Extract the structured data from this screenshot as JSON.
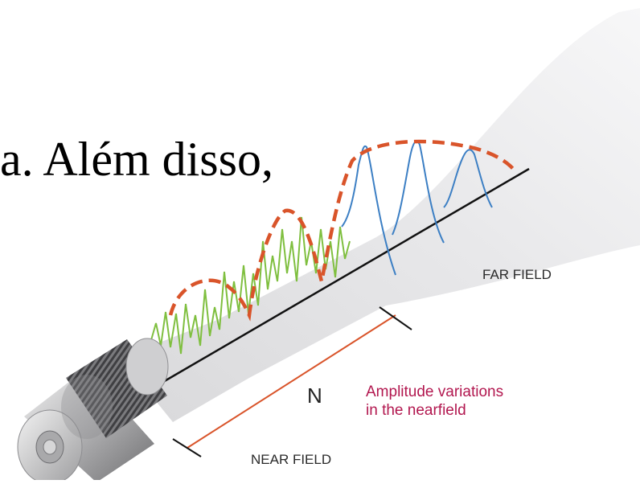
{
  "caption_text": "a. Além disso,",
  "labels": {
    "far_field": "FAR FIELD",
    "near_field": "NEAR FIELD",
    "n": "N",
    "amplitude_line1": "Amplitude variations",
    "amplitude_line2": "in the nearfield"
  },
  "colors": {
    "beam": "#e9e9ea",
    "envelope": "#d9542a",
    "near_waves": "#7fbf3f",
    "far_waves": "#3c7fc4",
    "axis": "#111111",
    "dimension_line": "#d9542a",
    "annotation_text": "#b2174f"
  },
  "icons": {
    "transducer": "transducer-icon"
  }
}
